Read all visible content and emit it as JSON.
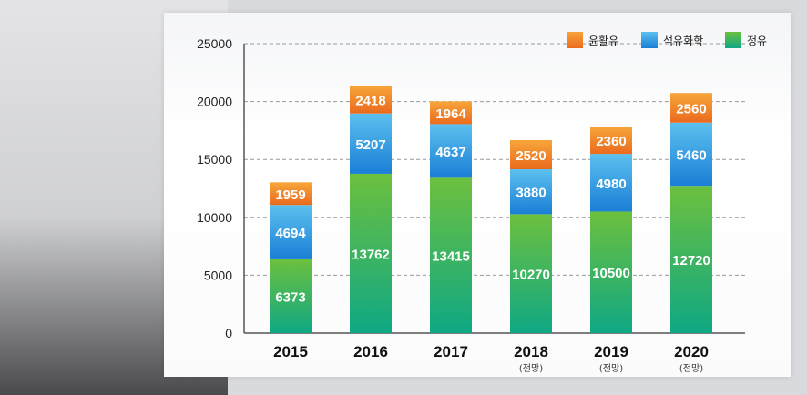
{
  "chart_data": {
    "type": "bar",
    "stacked": true,
    "categories": [
      "2015",
      "2016",
      "2017",
      "2018",
      "2019",
      "2020"
    ],
    "category_notes": [
      "",
      "",
      "",
      "(전망)",
      "(전망)",
      "(전망)"
    ],
    "series": [
      {
        "name": "정유",
        "values": [
          6373,
          13762,
          13415,
          10270,
          10500,
          12720
        ],
        "color_top": "#6cc03e",
        "color_bottom": "#0fa884"
      },
      {
        "name": "석유화학",
        "values": [
          4694,
          5207,
          4637,
          3880,
          4980,
          5460
        ],
        "color_top": "#5cc0ee",
        "color_bottom": "#1a7fd6"
      },
      {
        "name": "윤활유",
        "values": [
          1959,
          2418,
          1964,
          2520,
          2360,
          2560
        ],
        "color_top": "#f7a53a",
        "color_bottom": "#ea6b1e"
      }
    ],
    "legend": [
      "윤활유",
      "석유화학",
      "정유"
    ],
    "legend_position": "top-right",
    "yticks": [
      0,
      5000,
      10000,
      15000,
      20000,
      25000
    ],
    "ylim": [
      0,
      25000
    ],
    "grid": true,
    "title": "",
    "xlabel": "",
    "ylabel": ""
  }
}
